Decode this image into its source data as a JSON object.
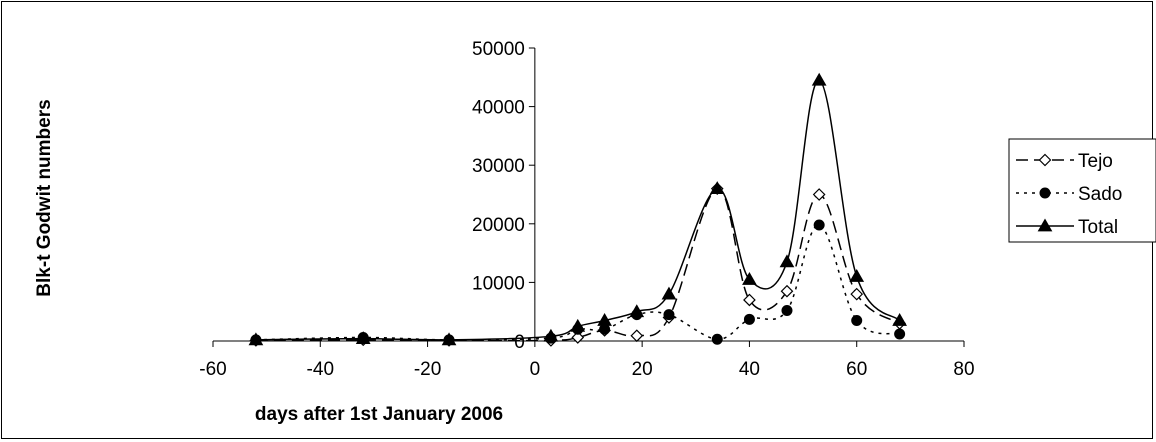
{
  "chart_data": {
    "type": "line",
    "title": "",
    "xlabel": "days after 1st January 2006",
    "ylabel": "Blk-t Godwit numbers",
    "xlim": [
      -60,
      80
    ],
    "ylim": [
      0,
      50000
    ],
    "x_ticks": [
      -60,
      -40,
      -20,
      0,
      20,
      40,
      60,
      80
    ],
    "y_ticks": [
      0,
      10000,
      20000,
      30000,
      40000,
      50000
    ],
    "grid": false,
    "legend_position": "right",
    "series": [
      {
        "name": "Tejo",
        "line_style": "dashed",
        "marker": "open-diamond",
        "color": "#000000",
        "x": [
          -52,
          -32,
          -16,
          3,
          8,
          13,
          19,
          25,
          34,
          40,
          47,
          53,
          60,
          68
        ],
        "y": [
          100,
          200,
          100,
          100,
          600,
          1800,
          900,
          4000,
          26000,
          7000,
          8500,
          25000,
          8000,
          3000
        ]
      },
      {
        "name": "Sado",
        "line_style": "dotted",
        "marker": "filled-circle",
        "color": "#000000",
        "x": [
          -52,
          -32,
          -16,
          3,
          8,
          13,
          19,
          25,
          34,
          40,
          47,
          53,
          60,
          68
        ],
        "y": [
          200,
          600,
          200,
          500,
          2000,
          2000,
          4500,
          4500,
          300,
          3700,
          5200,
          19800,
          3500,
          1200
        ]
      },
      {
        "name": "Total",
        "line_style": "solid",
        "marker": "filled-triangle",
        "color": "#000000",
        "x": [
          -52,
          -32,
          -16,
          3,
          8,
          13,
          19,
          25,
          34,
          40,
          47,
          53,
          60,
          68
        ],
        "y": [
          200,
          400,
          200,
          800,
          2500,
          3500,
          5000,
          8000,
          26000,
          10500,
          13500,
          44500,
          11000,
          3500
        ]
      }
    ]
  }
}
